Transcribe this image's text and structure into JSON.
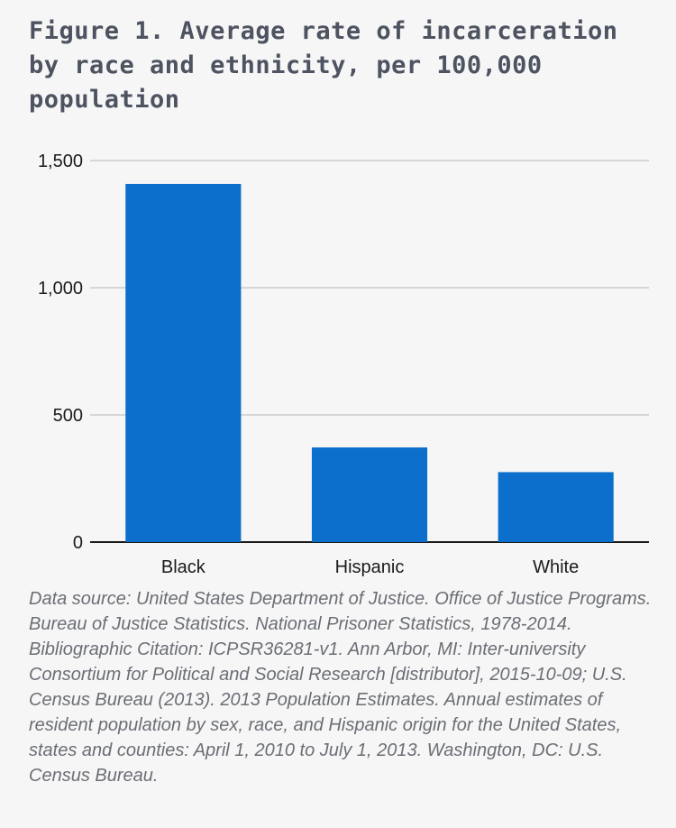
{
  "title": "Figure 1. Average rate of incarceration by race and ethnicity, per 100,000 population",
  "source_note": "Data source: United States Department of Justice. Office of Justice Programs. Bureau of Justice Statistics. National Prisoner Statistics, 1978-2014. Bibliographic Citation: ICPSR36281-v1. Ann Arbor, MI: Inter-university Consortium for Political and Social Research [distributor], 2015-10-09; U.S. Census Bureau (2013). 2013 Population Estimates. Annual estimates of resident population by sex, race, and Hispanic origin for the United States, states and counties: April 1, 2010 to July 1, 2013. Washington, DC: U.S. Census Bureau.",
  "colors": {
    "bar": "#0b6fcb",
    "gridline": "#c4c4c4",
    "baseline": "#1a1a1a",
    "title": "#4d5360",
    "note": "#6b6e75",
    "background": "#f6f6f6"
  },
  "chart_data": {
    "type": "bar",
    "title": "Figure 1. Average rate of incarceration by race and ethnicity, per 100,000 population",
    "xlabel": "",
    "ylabel": "",
    "categories": [
      "Black",
      "Hispanic",
      "White"
    ],
    "values": [
      1408,
      372,
      275
    ],
    "ylim": [
      0,
      1500
    ],
    "yticks": [
      0,
      500,
      1000,
      1500
    ],
    "ytick_labels": [
      "0",
      "500",
      "1,000",
      "1,500"
    ],
    "grid": true,
    "legend": "none"
  }
}
